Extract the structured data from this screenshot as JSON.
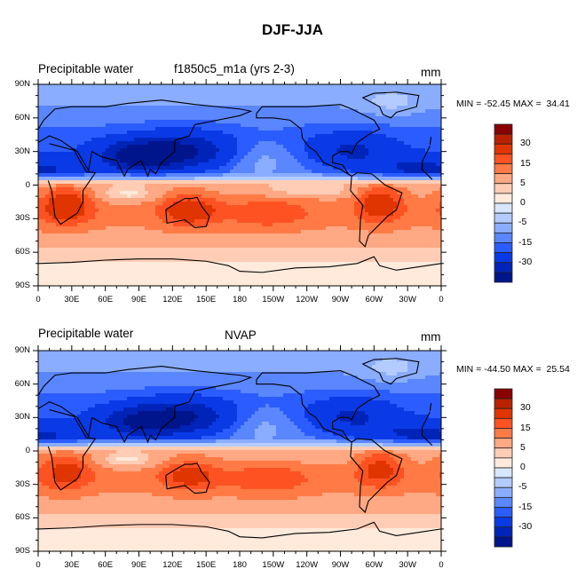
{
  "page_title": "DJF-JJA",
  "colors": {
    "palette": [
      "#8b0000",
      "#b82200",
      "#e03500",
      "#ff5222",
      "#ff7a45",
      "#ffa884",
      "#ffcdb5",
      "#ffeadb",
      "#d6e7ff",
      "#b3cbff",
      "#8aadff",
      "#5a86ff",
      "#2b5cff",
      "#0a3ae6",
      "#0024b8",
      "#00148c"
    ],
    "coast": "#000000"
  },
  "chart_data": [
    {
      "type": "heatmap",
      "subtype": "global-lat-lon-contour-map",
      "left_string": "Precipitable water",
      "center_string": "f1850c5_m1a (yrs 2-3)",
      "right_string": "mm",
      "minmax_text": "MIN = -52.45 MAX =  34.41",
      "min": -52.45,
      "max": 34.41,
      "xlabel": "",
      "ylabel": "",
      "xlim": [
        0,
        360
      ],
      "ylim": [
        -90,
        90
      ],
      "x_tick_labels": [
        "0",
        "30E",
        "60E",
        "90E",
        "120E",
        "150E",
        "180",
        "150W",
        "120W",
        "90W",
        "60W",
        "30W",
        "0"
      ],
      "y_tick_labels": [
        "90N",
        "60N",
        "30N",
        "0",
        "30S",
        "60S",
        "90S"
      ],
      "contour_levels": [
        40,
        30,
        20,
        15,
        10,
        5,
        2,
        0,
        -2,
        -5,
        -10,
        -15,
        -20,
        -30,
        -40
      ],
      "colorbar_labels": [
        "30",
        "15",
        "5",
        "0",
        "-5",
        "-15",
        "-30"
      ],
      "pattern": {
        "northern_hemisphere": "negative (blue), strongest over South Asia/Himalaya and W Pacific (~ -30 to -50), weaker over N Pacific and high latitudes (-5 to -15)",
        "southern_hemisphere": "positive (red), strongest over southern Africa, Australia and central South America (15 to 30), 5 to 10 over southern oceans, 0 to 2 over Antarctica",
        "equator": "sign change near 5N; weak negative patches in equatorial Pacific/Indian Ocean"
      }
    },
    {
      "type": "heatmap",
      "subtype": "global-lat-lon-contour-map",
      "left_string": "Precipitable water",
      "center_string": "NVAP",
      "right_string": "mm",
      "minmax_text": "MIN = -44.50 MAX =  25.54",
      "min": -44.5,
      "max": 25.54,
      "xlabel": "",
      "ylabel": "",
      "xlim": [
        0,
        360
      ],
      "ylim": [
        -90,
        90
      ],
      "x_tick_labels": [
        "0",
        "30E",
        "60E",
        "90E",
        "120E",
        "150E",
        "180",
        "150W",
        "120W",
        "90W",
        "60W",
        "30W",
        "0"
      ],
      "y_tick_labels": [
        "90N",
        "60N",
        "30N",
        "0",
        "30S",
        "60S",
        "90S"
      ],
      "contour_levels": [
        40,
        30,
        20,
        15,
        10,
        5,
        2,
        0,
        -2,
        -5,
        -10,
        -15,
        -20,
        -30,
        -40
      ],
      "colorbar_labels": [
        "30",
        "15",
        "5",
        "0",
        "-5",
        "-15",
        "-30"
      ],
      "pattern": {
        "northern_hemisphere": "negative (blue), strongest over India/SE Asia and E China (~ -30 to -40), -10 to -20 over N Pacific/N Atlantic, -5 over Greenland/Arctic",
        "southern_hemisphere": "positive (red), 10 to 20 over southern Africa, Australia, S Pacific and Brazil, 5 over southern oceans, 0 to 2 over Antarctica",
        "equator": "sign change near 3-5N"
      }
    }
  ]
}
